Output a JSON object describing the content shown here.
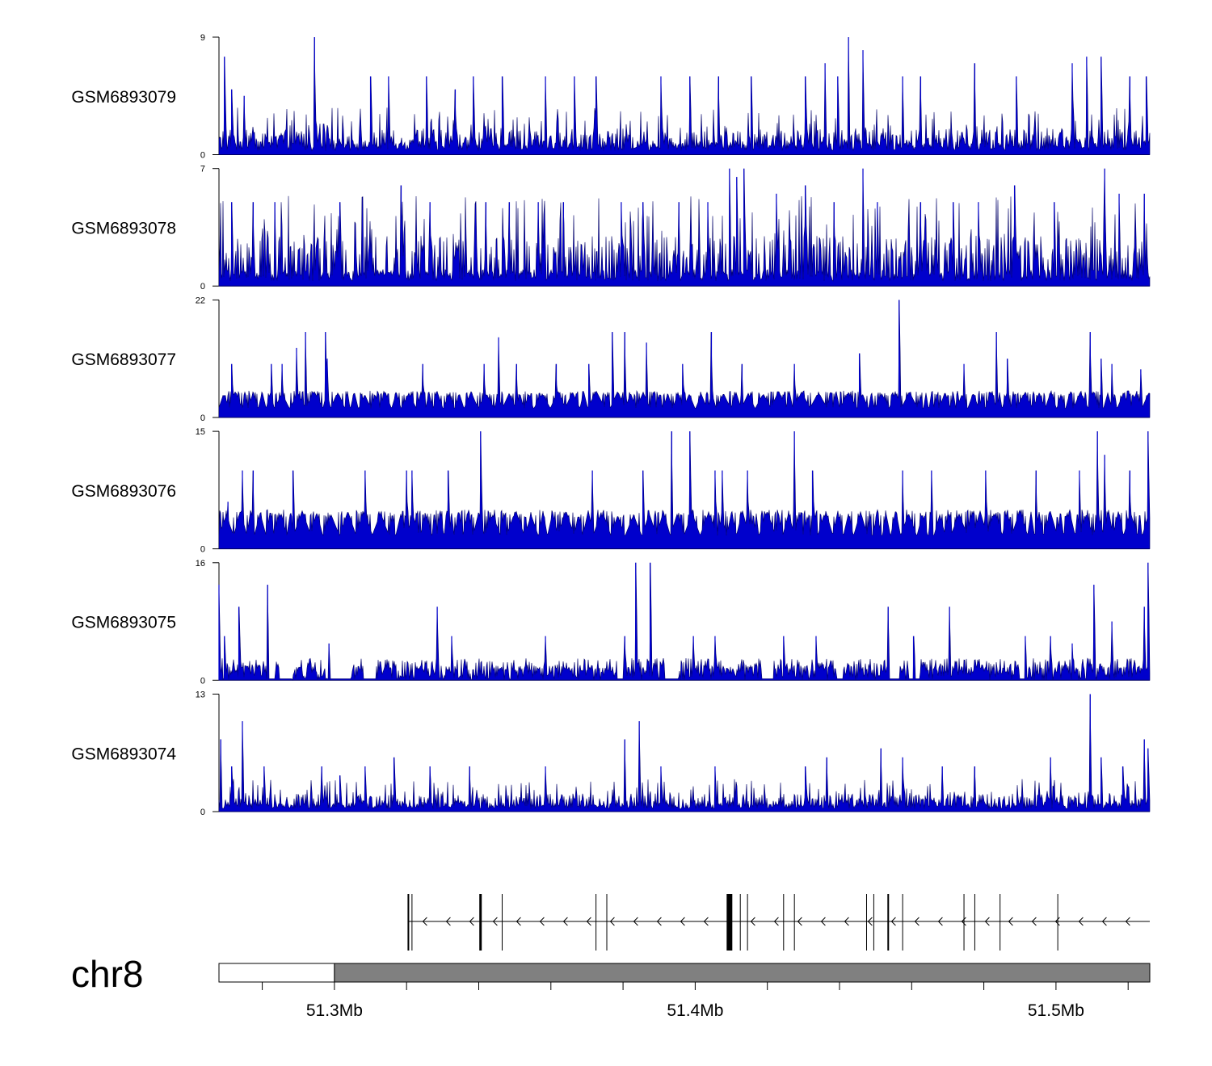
{
  "chart_data": {
    "type": "area",
    "title": "",
    "chromosome": "chr8",
    "xlabel": "",
    "x_range_mb": [
      51.268,
      51.526
    ],
    "x_ticks_mb": [
      51.28,
      51.3,
      51.32,
      51.34,
      51.36,
      51.38,
      51.4,
      51.42,
      51.44,
      51.46,
      51.48,
      51.5,
      51.52
    ],
    "x_tick_labels": [
      {
        "label": "51.3Mb",
        "mb": 51.3
      },
      {
        "label": "51.4Mb",
        "mb": 51.4
      },
      {
        "label": "51.5Mb",
        "mb": 51.5
      }
    ],
    "color": "#0000cc",
    "edge_color": "#000066",
    "tracks": [
      {
        "name": "GSM6893079",
        "ymax": 9,
        "ymin": 0,
        "ytick_labels": [
          "9",
          "0"
        ],
        "base": [
          1,
          2
        ],
        "pattern": "dense",
        "peaks": [
          [
            51.2695,
            7.5
          ],
          [
            51.2715,
            5
          ],
          [
            51.275,
            4.5
          ],
          [
            51.2945,
            9
          ],
          [
            51.31,
            6
          ],
          [
            51.315,
            6
          ],
          [
            51.3255,
            6
          ],
          [
            51.3335,
            5
          ],
          [
            51.3385,
            6
          ],
          [
            51.3465,
            6
          ],
          [
            51.3585,
            6
          ],
          [
            51.3665,
            6
          ],
          [
            51.3725,
            6
          ],
          [
            51.3905,
            6
          ],
          [
            51.3985,
            6
          ],
          [
            51.4065,
            6
          ],
          [
            51.4155,
            6
          ],
          [
            51.4305,
            6
          ],
          [
            51.436,
            7
          ],
          [
            51.4395,
            6
          ],
          [
            51.4425,
            9
          ],
          [
            51.4465,
            8
          ],
          [
            51.4575,
            6
          ],
          [
            51.4625,
            6
          ],
          [
            51.4775,
            7
          ],
          [
            51.489,
            6
          ],
          [
            51.5045,
            7
          ],
          [
            51.5085,
            7.5
          ],
          [
            51.5125,
            7.5
          ],
          [
            51.5205,
            6
          ],
          [
            51.525,
            6
          ]
        ]
      },
      {
        "name": "GSM6893078",
        "ymax": 7,
        "ymin": 0,
        "ytick_labels": [
          "7",
          "0"
        ],
        "base": [
          1,
          3
        ],
        "pattern": "dense",
        "peaks": [
          [
            51.2715,
            5
          ],
          [
            51.2775,
            5
          ],
          [
            51.2835,
            5
          ],
          [
            51.3015,
            5
          ],
          [
            51.3185,
            6
          ],
          [
            51.3265,
            5
          ],
          [
            51.342,
            5
          ],
          [
            51.3485,
            5
          ],
          [
            51.3565,
            5
          ],
          [
            51.3635,
            5
          ],
          [
            51.3795,
            5
          ],
          [
            51.3855,
            5
          ],
          [
            51.3955,
            5
          ],
          [
            51.4035,
            5
          ],
          [
            51.4095,
            7
          ],
          [
            51.4115,
            6.5
          ],
          [
            51.4135,
            7
          ],
          [
            51.4225,
            5.5
          ],
          [
            51.4305,
            6
          ],
          [
            51.4385,
            5
          ],
          [
            51.4465,
            7
          ],
          [
            51.4505,
            5
          ],
          [
            51.4625,
            5
          ],
          [
            51.4715,
            5
          ],
          [
            51.4785,
            5
          ],
          [
            51.4885,
            6
          ],
          [
            51.4995,
            5
          ],
          [
            51.5135,
            7
          ],
          [
            51.5175,
            5.5
          ],
          [
            51.5245,
            5.5
          ]
        ]
      },
      {
        "name": "GSM6893077",
        "ymax": 22,
        "ymin": 0,
        "ytick_labels": [
          "22",
          "0"
        ],
        "base": [
          5,
          5
        ],
        "pattern": "triangles",
        "peaks": [
          [
            51.2715,
            10
          ],
          [
            51.2825,
            10
          ],
          [
            51.2855,
            10
          ],
          [
            51.2895,
            13
          ],
          [
            51.292,
            16
          ],
          [
            51.2975,
            16
          ],
          [
            51.298,
            11
          ],
          [
            51.3245,
            10
          ],
          [
            51.3415,
            10
          ],
          [
            51.3455,
            15
          ],
          [
            51.3505,
            10
          ],
          [
            51.3615,
            10
          ],
          [
            51.3705,
            10
          ],
          [
            51.377,
            16
          ],
          [
            51.3805,
            16
          ],
          [
            51.3865,
            14
          ],
          [
            51.3965,
            10
          ],
          [
            51.4045,
            16
          ],
          [
            51.413,
            10
          ],
          [
            51.4275,
            10
          ],
          [
            51.4455,
            12
          ],
          [
            51.4565,
            22
          ],
          [
            51.4745,
            10
          ],
          [
            51.4835,
            16
          ],
          [
            51.4865,
            11
          ],
          [
            51.5095,
            16
          ],
          [
            51.5125,
            11
          ],
          [
            51.5155,
            10
          ],
          [
            51.5235,
            9
          ]
        ]
      },
      {
        "name": "GSM6893076",
        "ymax": 15,
        "ymin": 0,
        "ytick_labels": [
          "15",
          "0"
        ],
        "base": [
          5,
          5
        ],
        "pattern": "triangles",
        "peaks": [
          [
            51.2705,
            6
          ],
          [
            51.2745,
            10
          ],
          [
            51.2775,
            10
          ],
          [
            51.2885,
            10
          ],
          [
            51.3085,
            10
          ],
          [
            51.32,
            10
          ],
          [
            51.3215,
            10
          ],
          [
            51.3315,
            10
          ],
          [
            51.3405,
            15
          ],
          [
            51.3715,
            10
          ],
          [
            51.3855,
            10
          ],
          [
            51.3935,
            15
          ],
          [
            51.3985,
            15
          ],
          [
            51.4055,
            10
          ],
          [
            51.4075,
            10
          ],
          [
            51.4145,
            10
          ],
          [
            51.4275,
            15
          ],
          [
            51.4325,
            10
          ],
          [
            51.4575,
            10
          ],
          [
            51.4655,
            10
          ],
          [
            51.4805,
            10
          ],
          [
            51.4945,
            10
          ],
          [
            51.5065,
            10
          ],
          [
            51.5115,
            15
          ],
          [
            51.5135,
            12
          ],
          [
            51.5205,
            10
          ],
          [
            51.5255,
            15
          ]
        ]
      },
      {
        "name": "GSM6893075",
        "ymax": 16,
        "ymin": 0,
        "ytick_labels": [
          "16",
          "0"
        ],
        "base": [
          2,
          3
        ],
        "pattern": "mixed",
        "peaks": [
          [
            51.268,
            13
          ],
          [
            51.2695,
            6
          ],
          [
            51.2735,
            10
          ],
          [
            51.2815,
            13
          ],
          [
            51.2985,
            5
          ],
          [
            51.3285,
            10
          ],
          [
            51.3325,
            6
          ],
          [
            51.3585,
            6
          ],
          [
            51.3805,
            6
          ],
          [
            51.3835,
            16
          ],
          [
            51.3875,
            16
          ],
          [
            51.3995,
            6
          ],
          [
            51.4055,
            6
          ],
          [
            51.4245,
            6
          ],
          [
            51.4335,
            6
          ],
          [
            51.4535,
            10
          ],
          [
            51.4605,
            6
          ],
          [
            51.4705,
            10
          ],
          [
            51.4915,
            6
          ],
          [
            51.4985,
            6
          ],
          [
            51.5045,
            5
          ],
          [
            51.5105,
            13
          ],
          [
            51.5155,
            8
          ],
          [
            51.5245,
            10
          ],
          [
            51.5255,
            16
          ]
        ]
      },
      {
        "name": "GSM6893074",
        "ymax": 13,
        "ymin": 0,
        "ytick_labels": [
          "13",
          "0"
        ],
        "base": [
          1,
          2
        ],
        "pattern": "dense",
        "peaks": [
          [
            51.2685,
            8
          ],
          [
            51.2715,
            5
          ],
          [
            51.2745,
            10
          ],
          [
            51.2805,
            5
          ],
          [
            51.2965,
            5
          ],
          [
            51.3015,
            4
          ],
          [
            51.3085,
            5
          ],
          [
            51.3165,
            6
          ],
          [
            51.3265,
            5
          ],
          [
            51.3375,
            5
          ],
          [
            51.3585,
            5
          ],
          [
            51.3805,
            8
          ],
          [
            51.3845,
            10
          ],
          [
            51.3905,
            5
          ],
          [
            51.4055,
            5
          ],
          [
            51.4305,
            5
          ],
          [
            51.4365,
            6
          ],
          [
            51.4515,
            7
          ],
          [
            51.4575,
            6
          ],
          [
            51.4685,
            5
          ],
          [
            51.4775,
            5
          ],
          [
            51.4985,
            6
          ],
          [
            51.5095,
            13
          ],
          [
            51.5125,
            6
          ],
          [
            51.5185,
            5
          ],
          [
            51.5245,
            8
          ],
          [
            51.5255,
            7
          ]
        ]
      }
    ],
    "gene_model": {
      "strand": "-",
      "start_mb": 51.3205,
      "end_mb": 51.526,
      "exons": [
        {
          "mb": 51.3205,
          "width": 2
        },
        {
          "mb": 51.3215,
          "width": 1
        },
        {
          "mb": 51.3405,
          "width": 3
        },
        {
          "mb": 51.3465,
          "width": 1
        },
        {
          "mb": 51.3725,
          "width": 1
        },
        {
          "mb": 51.3755,
          "width": 1
        },
        {
          "mb": 51.4095,
          "width": 7
        },
        {
          "mb": 51.4125,
          "width": 1
        },
        {
          "mb": 51.4145,
          "width": 1
        },
        {
          "mb": 51.4245,
          "width": 1
        },
        {
          "mb": 51.4275,
          "width": 1
        },
        {
          "mb": 51.4475,
          "width": 1
        },
        {
          "mb": 51.4495,
          "width": 1
        },
        {
          "mb": 51.4535,
          "width": 2
        },
        {
          "mb": 51.4575,
          "width": 1
        },
        {
          "mb": 51.4745,
          "width": 1
        },
        {
          "mb": 51.4775,
          "width": 1
        },
        {
          "mb": 51.4845,
          "width": 1
        },
        {
          "mb": 51.5005,
          "width": 1
        }
      ]
    },
    "ideogram": {
      "unfilled_range_mb": [
        51.268,
        51.3
      ],
      "filled_range_mb": [
        51.3,
        51.526
      ],
      "fill_color": "#808080"
    }
  }
}
